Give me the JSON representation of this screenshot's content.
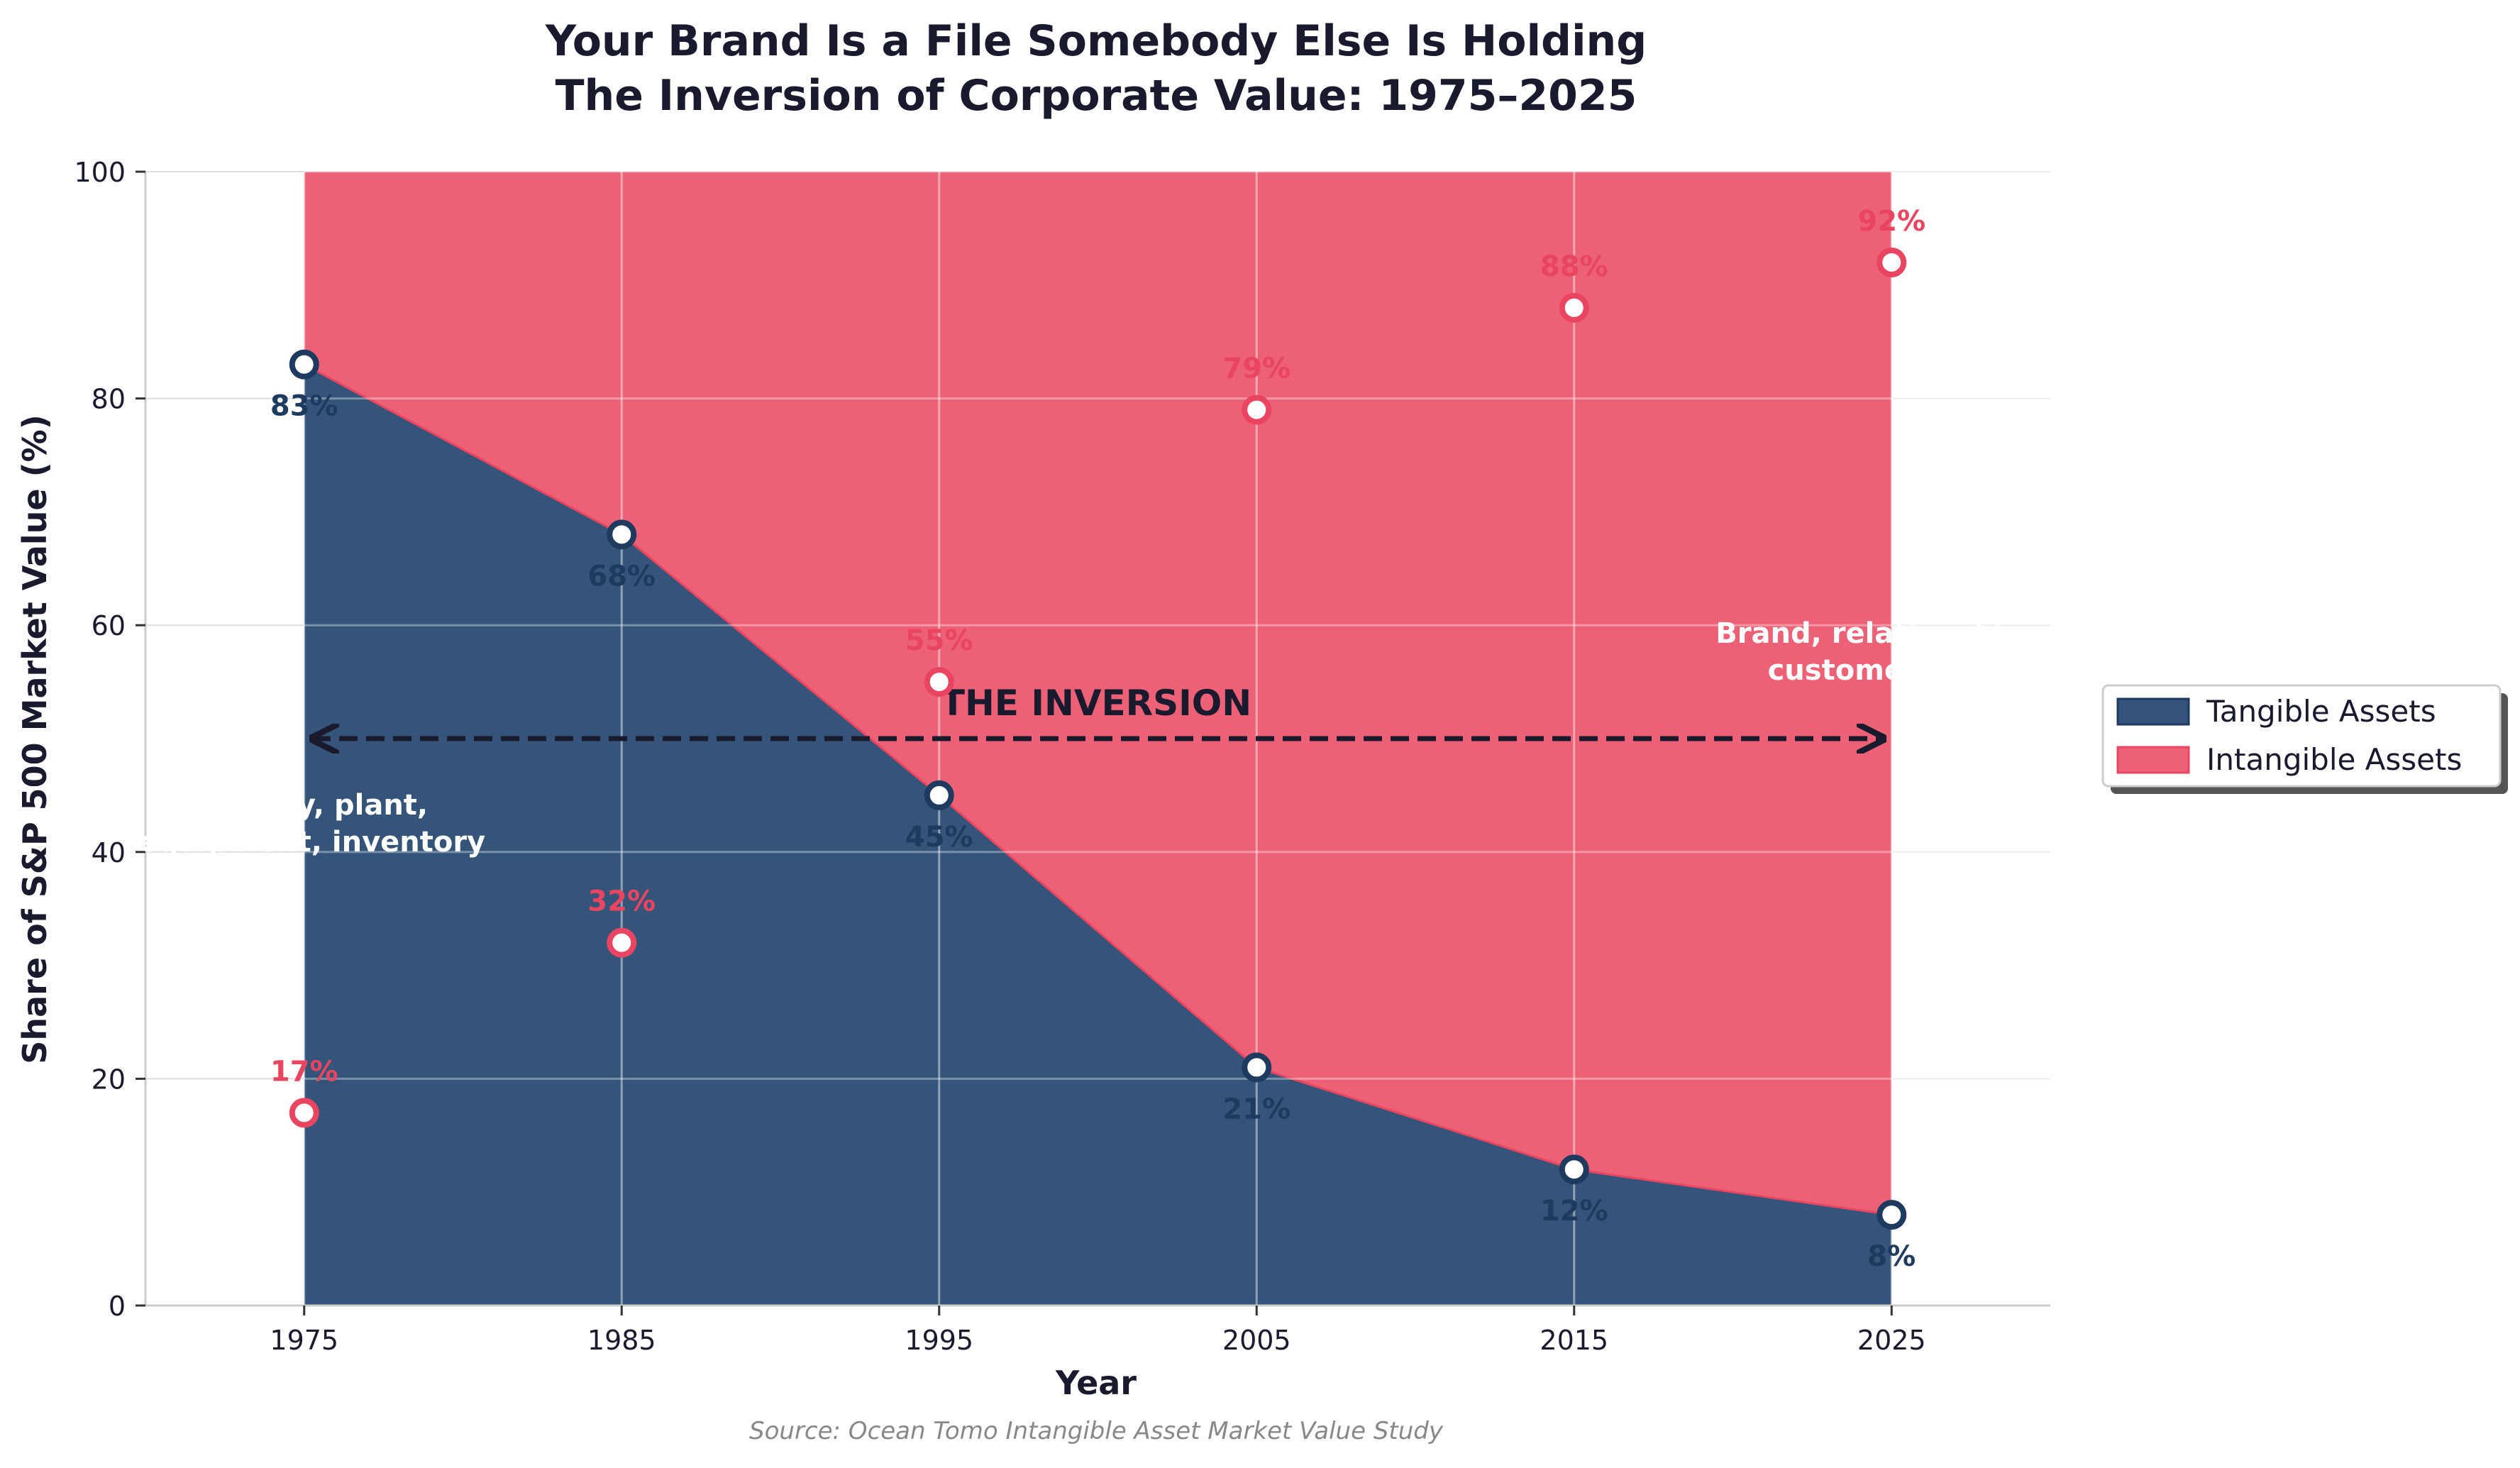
{
  "chart_data": {
    "type": "area",
    "title": "Your Brand Is a File Somebody Else Is Holding",
    "subtitle": "The Inversion of Corporate Value: 1975–2025",
    "xlabel": "Year",
    "ylabel": "Share of S&P 500 Market Value (%)",
    "x": [
      1975,
      1985,
      1995,
      2005,
      2015,
      2025
    ],
    "x_ticks": [
      "1975",
      "1985",
      "1995",
      "2005",
      "2015",
      "2025"
    ],
    "xlim": [
      1970,
      2030
    ],
    "ylim": [
      0,
      100
    ],
    "y_ticks": [
      "0",
      "20",
      "40",
      "60",
      "80",
      "100"
    ],
    "grid": true,
    "legend_position": "right",
    "series": [
      {
        "name": "Tangible Assets",
        "values": [
          83,
          68,
          45,
          21,
          12,
          8
        ],
        "color": "#1e3a5f",
        "labels": [
          "83%",
          "68%",
          "45%",
          "21%",
          "12%",
          "8%"
        ]
      },
      {
        "name": "Intangible Assets",
        "values": [
          17,
          32,
          55,
          79,
          88,
          92
        ],
        "color": "#e94560",
        "labels": [
          "17%",
          "32%",
          "55%",
          "79%",
          "88%",
          "92%"
        ]
      }
    ],
    "annotations": {
      "inversion": "THE INVERSION",
      "left_note_line1": "Factory, plant,",
      "left_note_line2": "equipment, inventory",
      "right_note_line1": "Brand, relationships,",
      "right_note_line2": "customer data"
    },
    "source": "Source: Ocean Tomo Intangible Asset Market Value Study"
  }
}
